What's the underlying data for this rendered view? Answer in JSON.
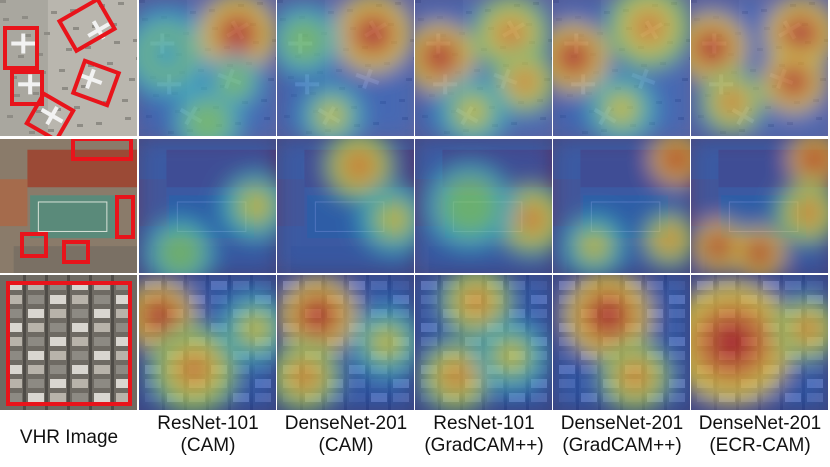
{
  "figure": {
    "rows": [
      {
        "scene": "airport",
        "boxes": 5
      },
      {
        "scene": "school",
        "boxes": 4
      },
      {
        "scene": "residential",
        "boxes": 1
      }
    ],
    "columns": [
      {
        "key": "vhr",
        "line1": "VHR Image",
        "line2": ""
      },
      {
        "key": "resnet-cam",
        "line1": "ResNet-101",
        "line2": "(CAM)"
      },
      {
        "key": "densenet-cam",
        "line1": "DenseNet-201",
        "line2": "(CAM)"
      },
      {
        "key": "resnet-gradcampp",
        "line1": "ResNet-101",
        "line2": "(GradCAM++)"
      },
      {
        "key": "densenet-gradcampp",
        "line1": "DenseNet-201",
        "line2": "(GradCAM++)"
      },
      {
        "key": "densenet-ecrcam",
        "line1": "DenseNet-201",
        "line2": "(ECR-CAM)"
      }
    ],
    "box_color": "#e8141b",
    "heat_colors": [
      "#1a1f8c",
      "#2a6fd0",
      "#38b6c9",
      "#7cd06a",
      "#e8d43a",
      "#e8862a",
      "#c8231c"
    ]
  }
}
